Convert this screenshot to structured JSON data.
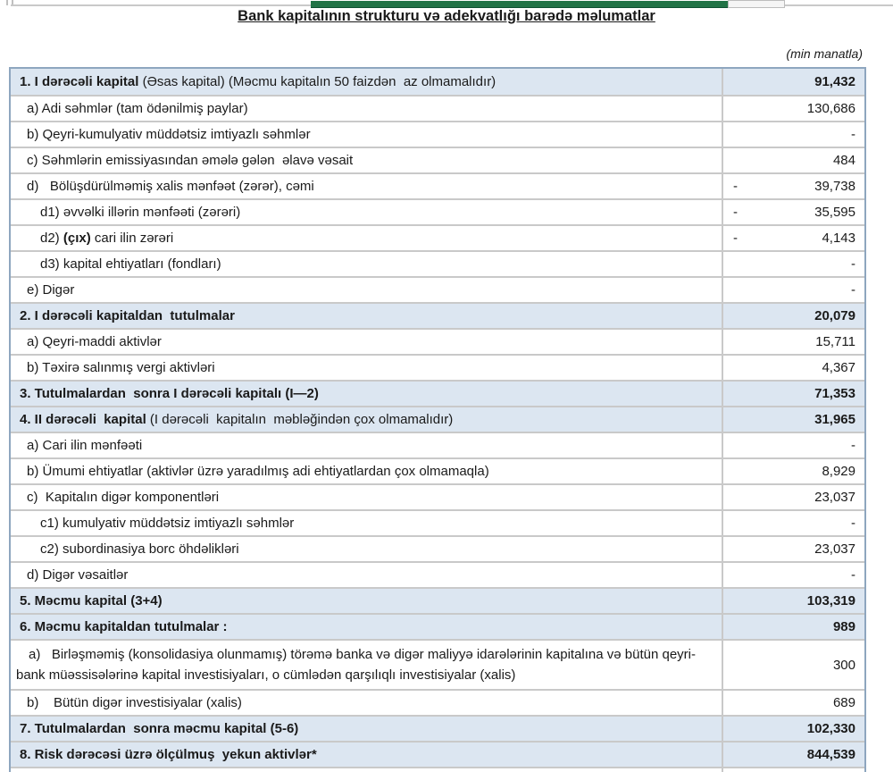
{
  "title": "Bank kapitalının strukturu və adekvatlığı barədə məlumatlar",
  "unit_note": "(min manatla)",
  "colors": {
    "text": "#1a1a1a",
    "section_bg": "#dce6f1",
    "border_outer": "#8ea6bf",
    "border_inner": "#c9c9c9",
    "green_accent": "#217346"
  },
  "table": {
    "negative_sign": "-",
    "rows": [
      {
        "kind": "section",
        "indent": 0,
        "parts": [
          {
            "t": "1. I dərəcəli kapital",
            "b": true
          },
          {
            "t": " (Əsas kapital) (Məcmu kapitalın 50 faizdən  az olmamalıdır)",
            "b": false
          }
        ],
        "value": "91,432",
        "neg": false
      },
      {
        "kind": "item",
        "indent": 1,
        "parts": [
          {
            "t": "a) Adi səhmlər (tam ödənilmiş paylar)",
            "b": false
          }
        ],
        "value": "130,686",
        "neg": false
      },
      {
        "kind": "item",
        "indent": 1,
        "parts": [
          {
            "t": "b) Qeyri-kumulyativ müddətsiz imtiyazlı səhmlər",
            "b": false
          }
        ],
        "value": "-",
        "neg": false
      },
      {
        "kind": "item",
        "indent": 1,
        "parts": [
          {
            "t": "c) Səhmlərin emissiyasından əmələ gələn  əlavə vəsait",
            "b": false
          }
        ],
        "value": "484",
        "neg": false
      },
      {
        "kind": "item",
        "indent": 1,
        "parts": [
          {
            "t": "d)   Bölüşdürülməmiş xalis mənfəət (zərər), cəmi",
            "b": false
          }
        ],
        "value": "39,738",
        "neg": true
      },
      {
        "kind": "item",
        "indent": 2,
        "parts": [
          {
            "t": "d1) əvvəlki illərin mənfəəti (zərəri)",
            "b": false
          }
        ],
        "value": "35,595",
        "neg": true
      },
      {
        "kind": "item",
        "indent": 2,
        "parts": [
          {
            "t": "d2) ",
            "b": false
          },
          {
            "t": "(çıx)",
            "b": true
          },
          {
            "t": " cari ilin zərəri",
            "b": false
          }
        ],
        "value": "4,143",
        "neg": true
      },
      {
        "kind": "item",
        "indent": 2,
        "parts": [
          {
            "t": "d3) kapital ehtiyatları (fondları)",
            "b": false
          }
        ],
        "value": "-",
        "neg": false
      },
      {
        "kind": "item",
        "indent": 1,
        "parts": [
          {
            "t": "e) Digər",
            "b": false
          }
        ],
        "value": "-",
        "neg": false
      },
      {
        "kind": "section",
        "indent": 0,
        "parts": [
          {
            "t": "2. I dərəcəli kapitaldan  tutulmalar",
            "b": true
          }
        ],
        "value": "20,079",
        "neg": false
      },
      {
        "kind": "item",
        "indent": 1,
        "parts": [
          {
            "t": "a) Qeyri-maddi aktivlər",
            "b": false
          }
        ],
        "value": "15,711",
        "neg": false
      },
      {
        "kind": "item",
        "indent": 1,
        "parts": [
          {
            "t": "b) Təxirə salınmış vergi aktivləri",
            "b": false
          }
        ],
        "value": "4,367",
        "neg": false
      },
      {
        "kind": "section",
        "indent": 0,
        "parts": [
          {
            "t": "3. Tutulmalardan  sonra I dərəcəli kapitalı (I—2)",
            "b": true
          }
        ],
        "value": "71,353",
        "neg": false
      },
      {
        "kind": "section",
        "indent": 0,
        "parts": [
          {
            "t": "4. II dərəcəli  kapital",
            "b": true
          },
          {
            "t": " (I dərəcəli  kapitalın  məbləğindən çox olmamalıdır)",
            "b": false
          }
        ],
        "value": "31,965",
        "neg": false
      },
      {
        "kind": "item",
        "indent": 1,
        "parts": [
          {
            "t": "a) Cari ilin mənfəəti",
            "b": false
          }
        ],
        "value": "-",
        "neg": false
      },
      {
        "kind": "item",
        "indent": 1,
        "parts": [
          {
            "t": "b) Ümumi ehtiyatlar (aktivlər üzrə yaradılmış adi ehtiyatlardan çox olmamaqla)",
            "b": false
          }
        ],
        "value": "8,929",
        "neg": false
      },
      {
        "kind": "item",
        "indent": 1,
        "parts": [
          {
            "t": "c)  Kapitalın digər komponentləri",
            "b": false
          }
        ],
        "value": "23,037",
        "neg": false
      },
      {
        "kind": "item",
        "indent": 2,
        "parts": [
          {
            "t": "c1) kumulyativ müddətsiz imtiyazlı səhmlər",
            "b": false
          }
        ],
        "value": "-",
        "neg": false
      },
      {
        "kind": "item",
        "indent": 2,
        "parts": [
          {
            "t": "c2) subordinasiya borc öhdəlikləri",
            "b": false
          }
        ],
        "value": "23,037",
        "neg": false
      },
      {
        "kind": "item",
        "indent": 1,
        "parts": [
          {
            "t": "d) Digər vəsaitlər",
            "b": false
          }
        ],
        "value": "-",
        "neg": false
      },
      {
        "kind": "section",
        "indent": 0,
        "parts": [
          {
            "t": "5. Məcmu kapital (3+4)",
            "b": true
          }
        ],
        "value": "103,319",
        "neg": false
      },
      {
        "kind": "section",
        "indent": 0,
        "parts": [
          {
            "t": "6. Məcmu kapitaldan tutulmalar :",
            "b": true
          }
        ],
        "value": "989",
        "neg": false
      },
      {
        "kind": "item",
        "indent": 1,
        "hang": true,
        "parts": [
          {
            "t": "a)   Birləşməmiş (konsolidasiya olunmamış) törəmə banka və digər maliyyə idarələrinin kapitalına və bütün qeyri-bank müəssisələrinə kapital investisiyaları, o cümlədən qarşılıqlı investisiyalar (xalis)",
            "b": false
          }
        ],
        "value": "300",
        "neg": false
      },
      {
        "kind": "item",
        "indent": 1,
        "parts": [
          {
            "t": "b)    Bütün digər investisiyalar (xalis)",
            "b": false
          }
        ],
        "value": "689",
        "neg": false
      },
      {
        "kind": "section",
        "indent": 0,
        "parts": [
          {
            "t": "7. Tutulmalardan  sonra məcmu kapital (5-6)",
            "b": true
          }
        ],
        "value": "102,330",
        "neg": false
      },
      {
        "kind": "section",
        "indent": 0,
        "parts": [
          {
            "t": "8. Risk dərəcəsi üzrə ölçülmuş  yekun aktivlər*",
            "b": true
          }
        ],
        "value": "844,539",
        "neg": false
      }
    ]
  }
}
